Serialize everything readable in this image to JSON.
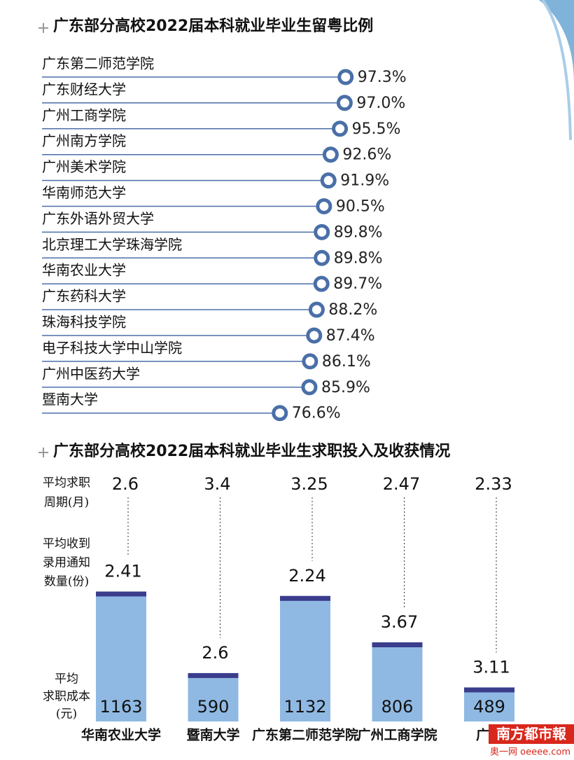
{
  "chart_data": [
    {
      "type": "lollipop",
      "title": "广东部分高校2022届本科就业毕业生留粤比例",
      "categories": [
        "广东第二师范学院",
        "广东财经大学",
        "广州工商学院",
        "广州南方学院",
        "广州美术学院",
        "华南师范大学",
        "广东外语外贸大学",
        "北京理工大学珠海学院",
        "华南农业大学",
        "广东药科大学",
        "珠海科技学院",
        "电子科技大学中山学院",
        "广州中医药大学",
        "暨南大学"
      ],
      "values": [
        97.3,
        97,
        95.5,
        92.6,
        91.9,
        90.5,
        89.8,
        89.8,
        89.7,
        88.2,
        87.4,
        86.1,
        85.9,
        76.6
      ],
      "value_labels": [
        "97.3%",
        "97.0%",
        "95.5%",
        "92.6%",
        "91.9%",
        "90.5%",
        "89.8%",
        "89.8%",
        "89.7%",
        "88.2%",
        "87.4%",
        "86.1%",
        "85.9%",
        "76.6%"
      ],
      "xlim": [
        0,
        100
      ],
      "color": "#4a6fa8"
    },
    {
      "type": "bar",
      "title": "广东部分高校2022届本科就业毕业生求职投入及收获情况",
      "categories": [
        "华南农业大学",
        "暨南大学",
        "广东第二师范学院",
        "广州工商学院",
        "广州"
      ],
      "series": [
        {
          "name": [
            "平均求职",
            "周期(月)"
          ],
          "values": [
            2.6,
            3.4,
            3.25,
            2.47,
            2.33
          ]
        },
        {
          "name": [
            "平均收到",
            "录用通知",
            "数量(份)"
          ],
          "values": [
            2.41,
            2.6,
            2.24,
            3.67,
            3.11
          ]
        },
        {
          "name": [
            "平均",
            "求职成本",
            "(元)"
          ],
          "values": [
            1163,
            590,
            1132,
            806,
            489
          ],
          "color": "#8fb9e3"
        }
      ],
      "ylim": [
        250,
        1200
      ]
    }
  ],
  "watermark": {
    "brand": "南方都市報",
    "site": "奥一网 oeeee.com"
  }
}
